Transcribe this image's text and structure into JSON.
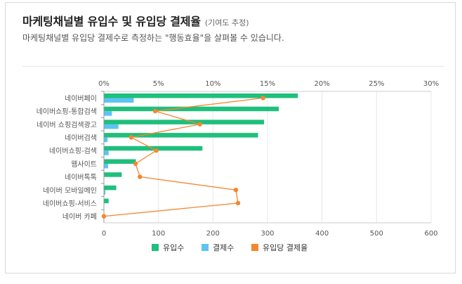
{
  "header": {
    "title": "마케팅채널별 유입수 및 유입당 결제율",
    "note": "(기여도 추정)",
    "subtitle": "마케팅채널별 유입당 결제수로 측정하는 \"행동효율\"을 살펴볼 수 있습니다."
  },
  "chart_data": {
    "type": "bar",
    "orientation": "horizontal",
    "categories": [
      "네이버페이",
      "네이버쇼핑-통합검색",
      "네이버 쇼핑검색광고",
      "네이버검색",
      "네이버쇼핑-검색",
      "웹사이트",
      "네이버톡톡",
      "네이버 모바일메인",
      "네이버쇼핑-서비스",
      "네이버 카페"
    ],
    "series": [
      {
        "name": "유입수",
        "color": "#1fbf7c",
        "axis": "bottom",
        "values": [
          355,
          320,
          293,
          282,
          180,
          58,
          32,
          22,
          8,
          0
        ]
      },
      {
        "name": "결제수",
        "color": "#5bc4f5",
        "axis": "bottom",
        "values": [
          54,
          14,
          26,
          6,
          8,
          7,
          0,
          2,
          0,
          0
        ]
      },
      {
        "name": "유입당 결제율",
        "color": "#f5862f",
        "type": "line",
        "axis": "top",
        "unit": "%",
        "values": [
          14.6,
          4.7,
          8.8,
          2.5,
          4.8,
          2.9,
          3.3,
          12.1,
          12.3,
          0
        ]
      }
    ],
    "x_bottom": {
      "ticks": [
        "0",
        "100",
        "200",
        "300",
        "400",
        "500",
        "600"
      ],
      "range": [
        0,
        600
      ]
    },
    "x_top": {
      "ticks": [
        "0%",
        "5%",
        "10%",
        "15%",
        "20%",
        "25%",
        "30%"
      ],
      "range": [
        0,
        30
      ]
    },
    "grid": true,
    "legend_position": "bottom"
  }
}
